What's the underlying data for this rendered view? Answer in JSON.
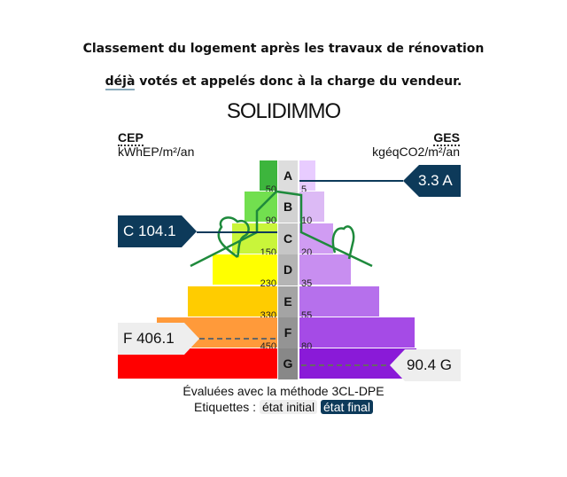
{
  "title_line1": "Classement du logement après les travaux de rénovation",
  "title_line2_underlined": "déjà",
  "title_line2_rest": " votés et appelés donc à la charge du vendeur.",
  "cep": {
    "label": "CEP",
    "unit": "kWhEP/m²/an"
  },
  "ges": {
    "label": "GES",
    "unit": "kgéqCO2/m²/an"
  },
  "classes": [
    "A",
    "B",
    "C",
    "D",
    "E",
    "F",
    "G"
  ],
  "cep_thresholds": [
    "50",
    "90",
    "150",
    "230",
    "330",
    "450"
  ],
  "ges_thresholds": [
    "5",
    "10",
    "20",
    "35",
    "55",
    "80"
  ],
  "cep_colors": [
    "#3db53d",
    "#72df4f",
    "#c9f53a",
    "#ffff00",
    "#ffcc00",
    "#ff9a3a",
    "#ff0000"
  ],
  "ges_colors": [
    "#e8ccff",
    "#dcbaf5",
    "#d09cf3",
    "#c88ef0",
    "#b670ec",
    "#a54be6",
    "#8a1ad8"
  ],
  "final_cep": "C 104.1",
  "final_ges": "3.3 A",
  "initial_cep": "F 406.1",
  "initial_ges": "90.4 G",
  "logo": "SOLIDIMMO",
  "method": "Évaluées avec la méthode 3CL-DPE",
  "etiquettes_label": "Etiquettes :",
  "etat_initial": "état initial",
  "etat_final": "état final",
  "accent": "#0d3a5a"
}
